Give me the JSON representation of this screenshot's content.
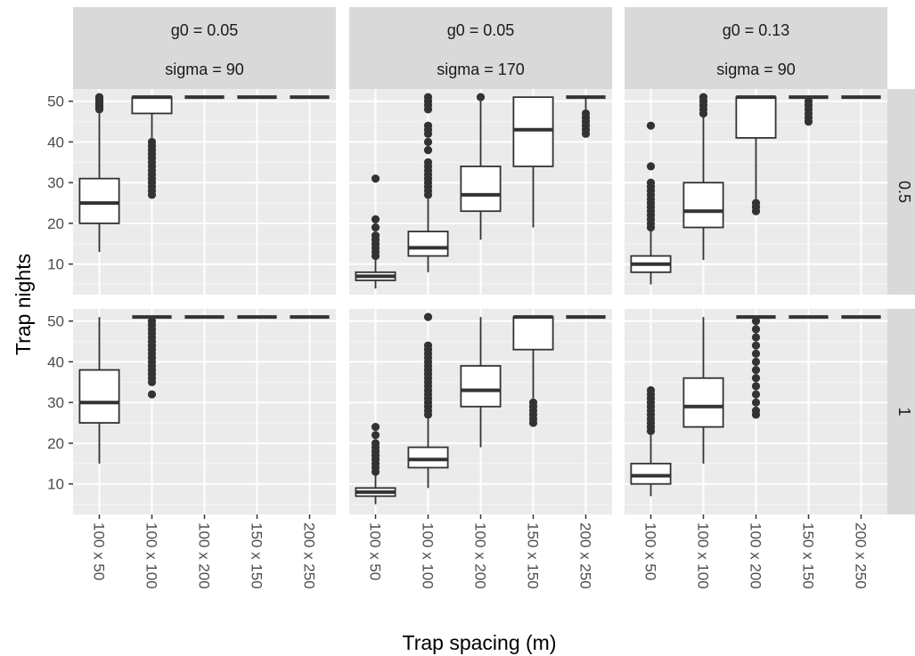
{
  "chart_data": {
    "type": "boxplot",
    "xlabel": "Trap spacing (m)",
    "ylabel": "Trap nights",
    "categories": [
      "100 x 50",
      "100 x 100",
      "100 x 200",
      "150 x 150",
      "200 x 250"
    ],
    "yticks": [
      10,
      20,
      30,
      40,
      50
    ],
    "ylim": [
      2.5,
      53
    ],
    "grid": true,
    "columns": [
      {
        "g0_label": "g0 = 0.05",
        "sigma_label": "sigma = 90"
      },
      {
        "g0_label": "g0 = 0.05",
        "sigma_label": "sigma = 170"
      },
      {
        "g0_label": "g0 = 0.13",
        "sigma_label": "sigma = 90"
      }
    ],
    "rows": [
      {
        "label": "0.5"
      },
      {
        "label": "1"
      }
    ],
    "panels": [
      [
        [
          {
            "lw": 13,
            "q1": 20,
            "med": 25,
            "q3": 31,
            "uw": 47,
            "outliers": [
              48,
              48.5,
              49,
              49.5,
              50,
              50.5,
              51
            ]
          },
          {
            "lw": 41,
            "q1": 47,
            "med": 51,
            "q3": 51,
            "uw": 51,
            "outliers": [
              27,
              28,
              29,
              30,
              31,
              32,
              33,
              34,
              35,
              36,
              37,
              38,
              39,
              40
            ]
          },
          {
            "lw": 51,
            "q1": 51,
            "med": 51,
            "q3": 51,
            "uw": 51,
            "outliers": []
          },
          {
            "lw": 51,
            "q1": 51,
            "med": 51,
            "q3": 51,
            "uw": 51,
            "outliers": []
          },
          {
            "lw": 51,
            "q1": 51,
            "med": 51,
            "q3": 51,
            "uw": 51,
            "outliers": []
          }
        ],
        [
          {
            "lw": 4,
            "q1": 6,
            "med": 7,
            "q3": 8,
            "uw": 11,
            "outliers": [
              12,
              13,
              14,
              15,
              16,
              17,
              19,
              21,
              31
            ]
          },
          {
            "lw": 8,
            "q1": 12,
            "med": 14,
            "q3": 18,
            "uw": 26,
            "outliers": [
              27,
              28,
              29,
              30,
              31,
              32,
              33,
              34,
              35,
              38,
              40,
              42,
              43,
              44,
              48,
              49,
              50,
              51
            ]
          },
          {
            "lw": 16,
            "q1": 23,
            "med": 27,
            "q3": 34,
            "uw": 50,
            "outliers": [
              51
            ]
          },
          {
            "lw": 19,
            "q1": 34,
            "med": 43,
            "q3": 51,
            "uw": 51,
            "outliers": []
          },
          {
            "lw": 48,
            "q1": 51,
            "med": 51,
            "q3": 51,
            "uw": 51,
            "outliers": [
              42,
              43,
              44,
              45,
              46,
              47
            ]
          }
        ],
        [
          {
            "lw": 5,
            "q1": 8,
            "med": 10,
            "q3": 12,
            "uw": 18,
            "outliers": [
              19,
              20,
              21,
              22,
              23,
              24,
              25,
              26,
              27,
              28,
              29,
              30,
              34,
              44
            ]
          },
          {
            "lw": 11,
            "q1": 19,
            "med": 23,
            "q3": 30,
            "uw": 46,
            "outliers": [
              47,
              48,
              49,
              50,
              51
            ]
          },
          {
            "lw": 26,
            "q1": 41,
            "med": 51,
            "q3": 51,
            "uw": 51,
            "outliers": [
              23,
              24,
              25
            ]
          },
          {
            "lw": 51,
            "q1": 51,
            "med": 51,
            "q3": 51,
            "uw": 51,
            "outliers": [
              45,
              46,
              47,
              48,
              49,
              50
            ]
          },
          {
            "lw": 51,
            "q1": 51,
            "med": 51,
            "q3": 51,
            "uw": 51,
            "outliers": []
          }
        ]
      ],
      [
        [
          {
            "lw": 15,
            "q1": 25,
            "med": 30,
            "q3": 38,
            "uw": 51,
            "outliers": []
          },
          {
            "lw": 51,
            "q1": 51,
            "med": 51,
            "q3": 51,
            "uw": 51,
            "outliers": [
              32,
              35,
              36,
              37,
              38,
              39,
              40,
              41,
              42,
              43,
              44,
              45,
              46,
              47,
              48,
              49,
              50
            ]
          },
          {
            "lw": 51,
            "q1": 51,
            "med": 51,
            "q3": 51,
            "uw": 51,
            "outliers": []
          },
          {
            "lw": 51,
            "q1": 51,
            "med": 51,
            "q3": 51,
            "uw": 51,
            "outliers": []
          },
          {
            "lw": 51,
            "q1": 51,
            "med": 51,
            "q3": 51,
            "uw": 51,
            "outliers": []
          }
        ],
        [
          {
            "lw": 5,
            "q1": 7,
            "med": 8,
            "q3": 9,
            "uw": 12,
            "outliers": [
              13,
              14,
              15,
              16,
              17,
              18,
              19,
              20,
              22,
              24
            ]
          },
          {
            "lw": 9,
            "q1": 14,
            "med": 16,
            "q3": 19,
            "uw": 26,
            "outliers": [
              27,
              28,
              29,
              30,
              31,
              32,
              33,
              34,
              35,
              36,
              37,
              38,
              39,
              40,
              41,
              42,
              43,
              44,
              51
            ]
          },
          {
            "lw": 19,
            "q1": 29,
            "med": 33,
            "q3": 39,
            "uw": 51,
            "outliers": []
          },
          {
            "lw": 31,
            "q1": 43,
            "med": 51,
            "q3": 51,
            "uw": 51,
            "outliers": [
              25,
              26,
              27,
              28,
              29,
              30
            ]
          },
          {
            "lw": 51,
            "q1": 51,
            "med": 51,
            "q3": 51,
            "uw": 51,
            "outliers": []
          }
        ],
        [
          {
            "lw": 7,
            "q1": 10,
            "med": 12,
            "q3": 15,
            "uw": 22,
            "outliers": [
              23,
              24,
              25,
              26,
              27,
              28,
              29,
              30,
              31,
              32,
              33
            ]
          },
          {
            "lw": 15,
            "q1": 24,
            "med": 29,
            "q3": 36,
            "uw": 51,
            "outliers": []
          },
          {
            "lw": 51,
            "q1": 51,
            "med": 51,
            "q3": 51,
            "uw": 51,
            "outliers": [
              27,
              28,
              30,
              32,
              34,
              36,
              38,
              40,
              42,
              44,
              46,
              48,
              50
            ]
          },
          {
            "lw": 51,
            "q1": 51,
            "med": 51,
            "q3": 51,
            "uw": 51,
            "outliers": []
          },
          {
            "lw": 51,
            "q1": 51,
            "med": 51,
            "q3": 51,
            "uw": 51,
            "outliers": []
          }
        ]
      ]
    ]
  }
}
